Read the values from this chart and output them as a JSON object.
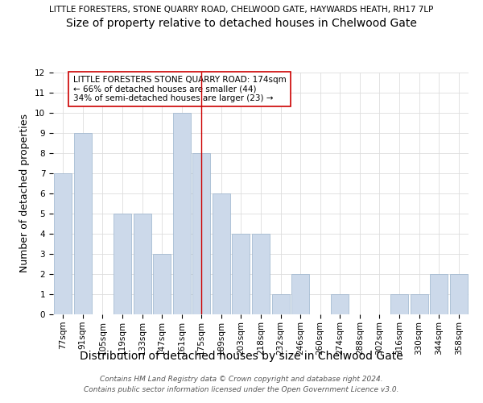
{
  "title_line1": "LITTLE FORESTERS, STONE QUARRY ROAD, CHELWOOD GATE, HAYWARDS HEATH, RH17 7LP",
  "title_line2": "Size of property relative to detached houses in Chelwood Gate",
  "xlabel": "Distribution of detached houses by size in Chelwood Gate",
  "ylabel": "Number of detached properties",
  "categories": [
    "77sqm",
    "91sqm",
    "105sqm",
    "119sqm",
    "133sqm",
    "147sqm",
    "161sqm",
    "175sqm",
    "189sqm",
    "203sqm",
    "218sqm",
    "232sqm",
    "246sqm",
    "260sqm",
    "274sqm",
    "288sqm",
    "302sqm",
    "316sqm",
    "330sqm",
    "344sqm",
    "358sqm"
  ],
  "values": [
    7,
    9,
    0,
    5,
    5,
    3,
    10,
    8,
    6,
    4,
    4,
    1,
    2,
    0,
    1,
    0,
    0,
    1,
    1,
    2,
    2
  ],
  "bar_color": "#ccd9ea",
  "bar_edgecolor": "#9ab3cc",
  "vline_x_index": 7,
  "vline_color": "#cc0000",
  "annotation_text": "LITTLE FORESTERS STONE QUARRY ROAD: 174sqm\n← 66% of detached houses are smaller (44)\n34% of semi-detached houses are larger (23) →",
  "annotation_box_color": "#ffffff",
  "annotation_box_edgecolor": "#cc0000",
  "ylim": [
    0,
    12
  ],
  "yticks": [
    0,
    1,
    2,
    3,
    4,
    5,
    6,
    7,
    8,
    9,
    10,
    11,
    12
  ],
  "grid_color": "#dddddd",
  "background_color": "#ffffff",
  "footer_text": "Contains HM Land Registry data © Crown copyright and database right 2024.\nContains public sector information licensed under the Open Government Licence v3.0.",
  "title1_fontsize": 7.5,
  "title2_fontsize": 10,
  "xlabel_fontsize": 10,
  "ylabel_fontsize": 9,
  "tick_fontsize": 7.5,
  "annotation_fontsize": 7.5,
  "footer_fontsize": 6.5
}
